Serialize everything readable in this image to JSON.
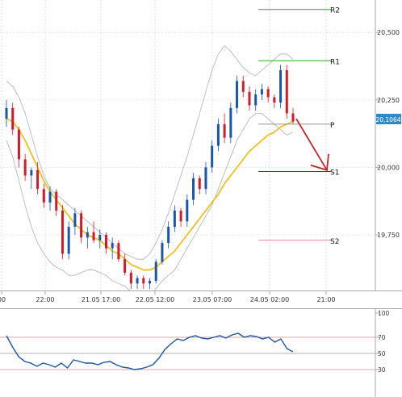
{
  "chart_data": [
    {
      "type": "candlestick",
      "x_tick_labels": [
        "00",
        "22:00",
        "21.05 17:00",
        "22.05 12:00",
        "23.05 07:00",
        "24.05 02:00",
        "21:00"
      ],
      "y_tick_labels": [
        "20,500",
        "20,250",
        "20,000",
        "19,750"
      ],
      "ylim": [
        19.55,
        20.62
      ],
      "current_price": "20,1064",
      "pivot_levels": [
        {
          "label": "R2",
          "value": 20.585,
          "color": "#2ea82e"
        },
        {
          "label": "R1",
          "value": 20.395,
          "color": "#2ea82e"
        },
        {
          "label": "P",
          "value": 20.16,
          "color": "#999999"
        },
        {
          "label": "S1",
          "value": 19.985,
          "color": "#8b1a1a"
        },
        {
          "label": "S2",
          "value": 19.73,
          "color": "#e88888"
        }
      ],
      "candles": [
        [
          20.18,
          20.25,
          20.15,
          20.22
        ],
        [
          20.22,
          20.24,
          20.12,
          20.14
        ],
        [
          20.14,
          20.15,
          20.0,
          20.03
        ],
        [
          20.03,
          20.05,
          19.95,
          19.97
        ],
        [
          19.97,
          20.0,
          19.92,
          19.99
        ],
        [
          19.99,
          20.02,
          19.9,
          19.92
        ],
        [
          19.92,
          19.94,
          19.85,
          19.87
        ],
        [
          19.87,
          19.93,
          19.84,
          19.91
        ],
        [
          19.91,
          19.92,
          19.82,
          19.84
        ],
        [
          19.84,
          19.86,
          19.66,
          19.68
        ],
        [
          19.68,
          19.8,
          19.66,
          19.78
        ],
        [
          19.78,
          19.85,
          19.75,
          19.83
        ],
        [
          19.83,
          19.84,
          19.72,
          19.74
        ],
        [
          19.74,
          19.78,
          19.7,
          19.76
        ],
        [
          19.76,
          19.8,
          19.72,
          19.73
        ],
        [
          19.73,
          19.77,
          19.7,
          19.75
        ],
        [
          19.75,
          19.76,
          19.68,
          19.7
        ],
        [
          19.7,
          19.74,
          19.66,
          19.72
        ],
        [
          19.72,
          19.73,
          19.65,
          19.66
        ],
        [
          19.66,
          19.68,
          19.6,
          19.61
        ],
        [
          19.61,
          19.62,
          19.55,
          19.57
        ],
        [
          19.57,
          19.6,
          19.55,
          19.59
        ],
        [
          19.59,
          19.6,
          19.55,
          19.57
        ],
        [
          19.57,
          19.59,
          19.55,
          19.58
        ],
        [
          19.58,
          19.66,
          19.57,
          19.65
        ],
        [
          19.65,
          19.73,
          19.64,
          19.72
        ],
        [
          19.72,
          19.8,
          19.7,
          19.78
        ],
        [
          19.78,
          19.86,
          19.76,
          19.84
        ],
        [
          19.84,
          19.85,
          19.78,
          19.8
        ],
        [
          19.8,
          19.9,
          19.78,
          19.88
        ],
        [
          19.88,
          19.98,
          19.86,
          19.96
        ],
        [
          19.96,
          19.97,
          19.9,
          19.92
        ],
        [
          19.92,
          20.02,
          19.9,
          20.0
        ],
        [
          20.0,
          20.1,
          19.98,
          20.08
        ],
        [
          20.08,
          20.18,
          20.06,
          20.16
        ],
        [
          20.16,
          20.2,
          20.09,
          20.11
        ],
        [
          20.11,
          20.24,
          20.09,
          20.22
        ],
        [
          20.22,
          20.34,
          20.2,
          20.32
        ],
        [
          20.32,
          20.34,
          20.26,
          20.28
        ],
        [
          20.28,
          20.3,
          20.21,
          20.23
        ],
        [
          20.23,
          20.29,
          20.21,
          20.27
        ],
        [
          20.27,
          20.31,
          20.25,
          20.29
        ],
        [
          20.29,
          20.3,
          20.24,
          20.26
        ],
        [
          20.26,
          20.27,
          20.22,
          20.24
        ],
        [
          20.24,
          20.38,
          20.22,
          20.36
        ],
        [
          20.36,
          20.38,
          20.18,
          20.2
        ],
        [
          20.2,
          20.22,
          20.16,
          20.17
        ]
      ],
      "bollinger_upper": [
        20.32,
        20.3,
        20.26,
        20.2,
        20.12,
        20.04,
        19.97,
        19.92,
        19.9,
        19.88,
        19.86,
        19.84,
        19.82,
        19.8,
        19.78,
        19.76,
        19.74,
        19.72,
        19.7,
        19.68,
        19.67,
        19.66,
        19.66,
        19.68,
        19.72,
        19.77,
        19.83,
        19.9,
        19.97,
        20.04,
        20.12,
        20.2,
        20.28,
        20.36,
        20.42,
        20.45,
        20.43,
        20.4,
        20.37,
        20.35,
        20.34,
        20.36,
        20.38,
        20.4,
        20.42,
        20.42,
        20.4
      ],
      "bollinger_lower": [
        20.1,
        20.04,
        19.95,
        19.86,
        19.78,
        19.72,
        19.68,
        19.65,
        19.63,
        19.62,
        19.6,
        19.6,
        19.61,
        19.62,
        19.62,
        19.61,
        19.6,
        19.58,
        19.57,
        19.56,
        19.54,
        19.52,
        19.52,
        19.53,
        19.55,
        19.58,
        19.6,
        19.62,
        19.66,
        19.7,
        19.74,
        19.78,
        19.82,
        19.86,
        19.92,
        19.98,
        20.04,
        20.1,
        20.14,
        20.18,
        20.2,
        20.2,
        20.18,
        20.16,
        20.14,
        20.12,
        20.13
      ],
      "moving_average": [
        20.18,
        20.17,
        20.14,
        20.1,
        20.05,
        20.0,
        19.95,
        19.91,
        19.88,
        19.85,
        19.82,
        19.79,
        19.77,
        19.75,
        19.74,
        19.73,
        19.71,
        19.69,
        19.68,
        19.66,
        19.64,
        19.63,
        19.62,
        19.62,
        19.63,
        19.65,
        19.67,
        19.69,
        19.72,
        19.75,
        19.78,
        19.81,
        19.84,
        19.87,
        19.9,
        19.94,
        19.97,
        20.0,
        20.03,
        20.06,
        20.08,
        20.1,
        20.12,
        20.13,
        20.15,
        20.16,
        20.17
      ],
      "forecast_arrow": {
        "from_value": 20.18,
        "to_value": 19.99
      }
    },
    {
      "type": "line",
      "y_tick_labels": [
        "100",
        "70",
        "50",
        "30"
      ],
      "ylim": [
        0,
        100
      ],
      "reference_lines": [
        70,
        50,
        30
      ],
      "series": [
        {
          "values": [
            72,
            58,
            46,
            40,
            38,
            34,
            38,
            36,
            33,
            38,
            32,
            42,
            40,
            38,
            38,
            36,
            39,
            40,
            36,
            33,
            32,
            30,
            31,
            33,
            36,
            44,
            55,
            62,
            68,
            66,
            70,
            72,
            69,
            68,
            70,
            72,
            69,
            73,
            75,
            70,
            72,
            71,
            68,
            70,
            64,
            68,
            56,
            52
          ]
        }
      ]
    }
  ]
}
